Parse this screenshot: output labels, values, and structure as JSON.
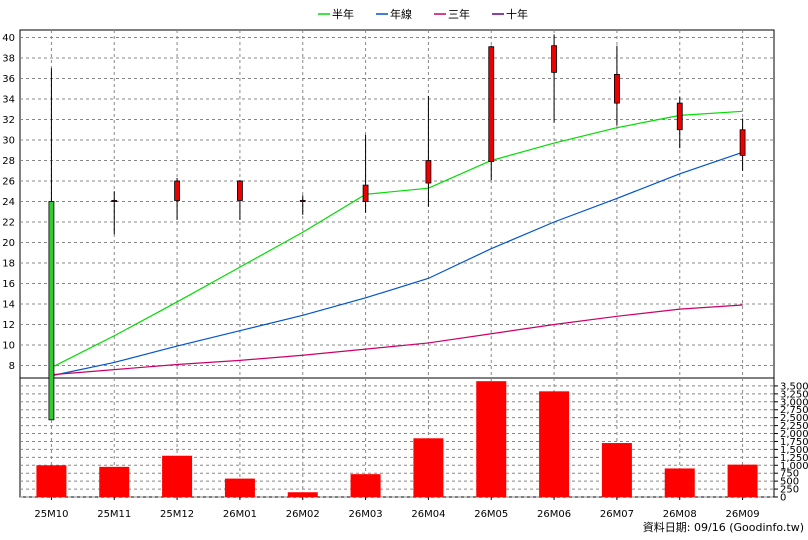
{
  "chart_data": {
    "type": "candlestick",
    "legend_position": "top",
    "legend": [
      {
        "name": "半年",
        "color": "#00dd00"
      },
      {
        "name": "年線",
        "color": "#0055cc"
      },
      {
        "name": "三年",
        "color": "#cc0066"
      },
      {
        "name": "十年",
        "color": "#660099"
      }
    ],
    "categories": [
      "25M10",
      "25M11",
      "25M12",
      "26M01",
      "26M02",
      "26M03",
      "26M04",
      "26M05",
      "26M06",
      "26M07",
      "26M08",
      "26M09"
    ],
    "price_axis": {
      "ylim": [
        6,
        40.5
      ],
      "ticks": [
        8,
        10,
        12,
        14,
        16,
        18,
        20,
        22,
        24,
        26,
        28,
        30,
        32,
        34,
        36,
        38,
        40
      ]
    },
    "candles": [
      {
        "open": 24.0,
        "high": 37.0,
        "low": 2.7,
        "close": 2.7
      },
      {
        "open": 24.1,
        "high": 25.0,
        "low": 20.8,
        "close": 24.1
      },
      {
        "open": 24.1,
        "high": 26.3,
        "low": 22.2,
        "close": 26.0
      },
      {
        "open": 24.1,
        "high": 26.1,
        "low": 22.2,
        "close": 26.0
      },
      {
        "open": 24.1,
        "high": 24.6,
        "low": 22.7,
        "close": 24.1
      },
      {
        "open": 24.0,
        "high": 30.5,
        "low": 22.9,
        "close": 25.6
      },
      {
        "open": 25.8,
        "high": 34.3,
        "low": 23.5,
        "close": 28.0
      },
      {
        "open": 27.9,
        "high": 39.2,
        "low": 26.1,
        "close": 39.1
      },
      {
        "open": 36.6,
        "high": 40.3,
        "low": 31.7,
        "close": 39.2
      },
      {
        "open": 33.6,
        "high": 39.2,
        "low": 31.4,
        "close": 36.4
      },
      {
        "open": 31.0,
        "high": 34.2,
        "low": 29.2,
        "close": 33.6
      },
      {
        "open": 28.5,
        "high": 32.1,
        "low": 27.0,
        "close": 31.0
      }
    ],
    "moving_averages": [
      {
        "name": "半年",
        "color": "#00dd00",
        "values": [
          7.8,
          10.9,
          14.2,
          17.6,
          21.0,
          24.7,
          25.3,
          28.0,
          29.7,
          31.2,
          32.4,
          32.8
        ]
      },
      {
        "name": "年線",
        "color": "#0055cc",
        "values": [
          7.0,
          8.3,
          9.9,
          11.4,
          12.9,
          14.6,
          16.5,
          19.4,
          22.0,
          24.3,
          26.7,
          28.8
        ]
      },
      {
        "name": "三年",
        "color": "#cc0066",
        "values": [
          7.1,
          7.6,
          8.1,
          8.5,
          9.0,
          9.6,
          10.2,
          11.1,
          12.0,
          12.8,
          13.5,
          13.9
        ]
      }
    ],
    "volume_axis": {
      "ylim": [
        0,
        3750
      ],
      "ticks": [
        0,
        250,
        500,
        750,
        1000,
        1250,
        1500,
        1750,
        2000,
        2250,
        2500,
        2750,
        3000,
        3250,
        3500
      ],
      "tick_labels": [
        "0",
        "250",
        "500",
        "750",
        "1,000",
        "1,250",
        "1,500",
        "1,750",
        "2,000",
        "2,250",
        "2,500",
        "2,750",
        "3,000",
        "3,250",
        "3,500"
      ]
    },
    "volume": [
      1000,
      950,
      1300,
      580,
      150,
      720,
      1850,
      3650,
      3330,
      1700,
      900,
      1020
    ],
    "up_color": "#ee0000",
    "down_color": "#33cc33",
    "volume_color": "#ff0000",
    "grid": true
  },
  "footer": {
    "source_text": "資料日期: 09/16  (Goodinfo.tw)"
  }
}
